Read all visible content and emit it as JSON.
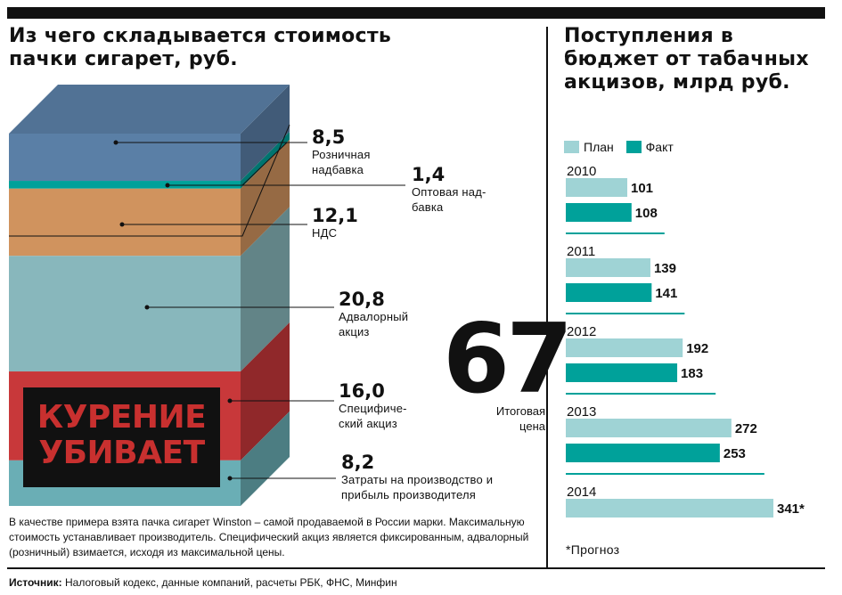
{
  "left_title": "Из чего складывается стоимость пачки сигарет, руб.",
  "right_title": "Поступления в бюджет от табачных акцизов, млрд руб.",
  "total": {
    "value": "67",
    "label": "Итоговая\nцена"
  },
  "warning": {
    "line1": "КУРЕНИЕ",
    "line2": "УБИВАЕТ"
  },
  "note": "В качестве примера взята пачка сигарет Winston – самой продаваемой в России марки. Максимальную стоимость устанавливает производитель. Специфический акциз является фиксированным, адвалорный (розничный) взимается, исходя из максимальной цены.",
  "source": {
    "label": "Источник:",
    "text": "Налоговый кодекс, данные компаний, расчеты РБК, ФНС, Минфин"
  },
  "footnote": "*Прогноз",
  "colors": {
    "plan": "#9fd3d5",
    "fact": "#00a19a",
    "layer_blue": "#5a7fa6",
    "layer_teal": "#00a19a",
    "layer_orange": "#d0935e",
    "layer_lightblue": "#88b7bc",
    "layer_red": "#c8383a",
    "layer_bottom": "#6aaeb5"
  },
  "chart_data": [
    {
      "type": "stacked-bar",
      "title": "Из чего складывается стоимость пачки сигарет, руб.",
      "unit": "руб.",
      "total": 67,
      "components": [
        {
          "name": "Розничная надбавка",
          "value": 8.5,
          "label": "8,5"
        },
        {
          "name": "Оптовая надбавка",
          "value": 1.4,
          "label": "1,4"
        },
        {
          "name": "НДС",
          "value": 12.1,
          "label": "12,1"
        },
        {
          "name": "Адвалорный акциз",
          "value": 20.8,
          "label": "20,8"
        },
        {
          "name": "Специфический акциз",
          "value": 16.0,
          "label": "16,0"
        },
        {
          "name": "Затраты на производство и прибыль производителя",
          "value": 8.2,
          "label": "8,2"
        }
      ],
      "display_labels": [
        "Розничная\nнадбавка",
        "Оптовая над-\nбавка",
        "НДС",
        "Адвалорный\nакциз",
        "Специфиче-\nский акциз",
        "Затраты на производство и\nприбыль производителя"
      ]
    },
    {
      "type": "bar",
      "orientation": "horizontal",
      "title": "Поступления в бюджет от табачных акцизов, млрд руб.",
      "legend": [
        "План",
        "Факт"
      ],
      "legend_position": "top",
      "categories": [
        "2010",
        "2011",
        "2012",
        "2013",
        "2014"
      ],
      "series": [
        {
          "name": "План",
          "values": [
            101,
            139,
            192,
            272,
            341
          ],
          "labels": [
            "101",
            "139",
            "192",
            "272",
            "341*"
          ]
        },
        {
          "name": "Факт",
          "values": [
            108,
            141,
            183,
            253,
            null
          ],
          "labels": [
            "108",
            "141",
            "183",
            "253",
            ""
          ]
        }
      ],
      "xlim": [
        0,
        341
      ]
    }
  ]
}
